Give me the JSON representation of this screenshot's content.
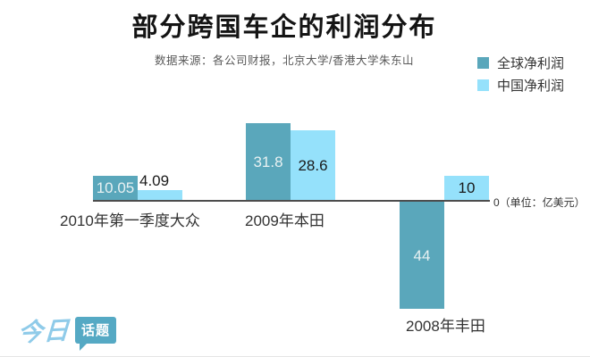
{
  "header": {
    "title": "部分跨国车企的利润分布",
    "subtitle": "数据来源：各公司财报，北京大学/香港大学朱东山"
  },
  "legend": [
    {
      "label": "全球净利润",
      "color": "#5aa7bb"
    },
    {
      "label": "中国净利润",
      "color": "#95e1fb"
    }
  ],
  "axis_note": "0（单位：亿美元）",
  "chart_data": {
    "type": "bar",
    "title": "部分跨国车企的利润分布",
    "unit": "亿美元",
    "categories": [
      "2010年第一季度大众",
      "2009年本田",
      "2008年丰田"
    ],
    "series": [
      {
        "name": "全球净利润",
        "color": "#5aa7bb",
        "values": [
          10.05,
          31.8,
          -44
        ],
        "labels": [
          "10.05",
          "31.8",
          "44"
        ]
      },
      {
        "name": "中国净利润",
        "color": "#95e1fb",
        "values": [
          4.09,
          28.6,
          10
        ],
        "labels": [
          "4.09",
          "28.6",
          "10"
        ]
      }
    ],
    "baseline": 0,
    "legend_position": "top-right",
    "grid": false
  },
  "logo": {
    "part1": "今日",
    "part2": "话题",
    "script_color": "#8fcbe9",
    "bubble_color": "#55a9c4"
  }
}
